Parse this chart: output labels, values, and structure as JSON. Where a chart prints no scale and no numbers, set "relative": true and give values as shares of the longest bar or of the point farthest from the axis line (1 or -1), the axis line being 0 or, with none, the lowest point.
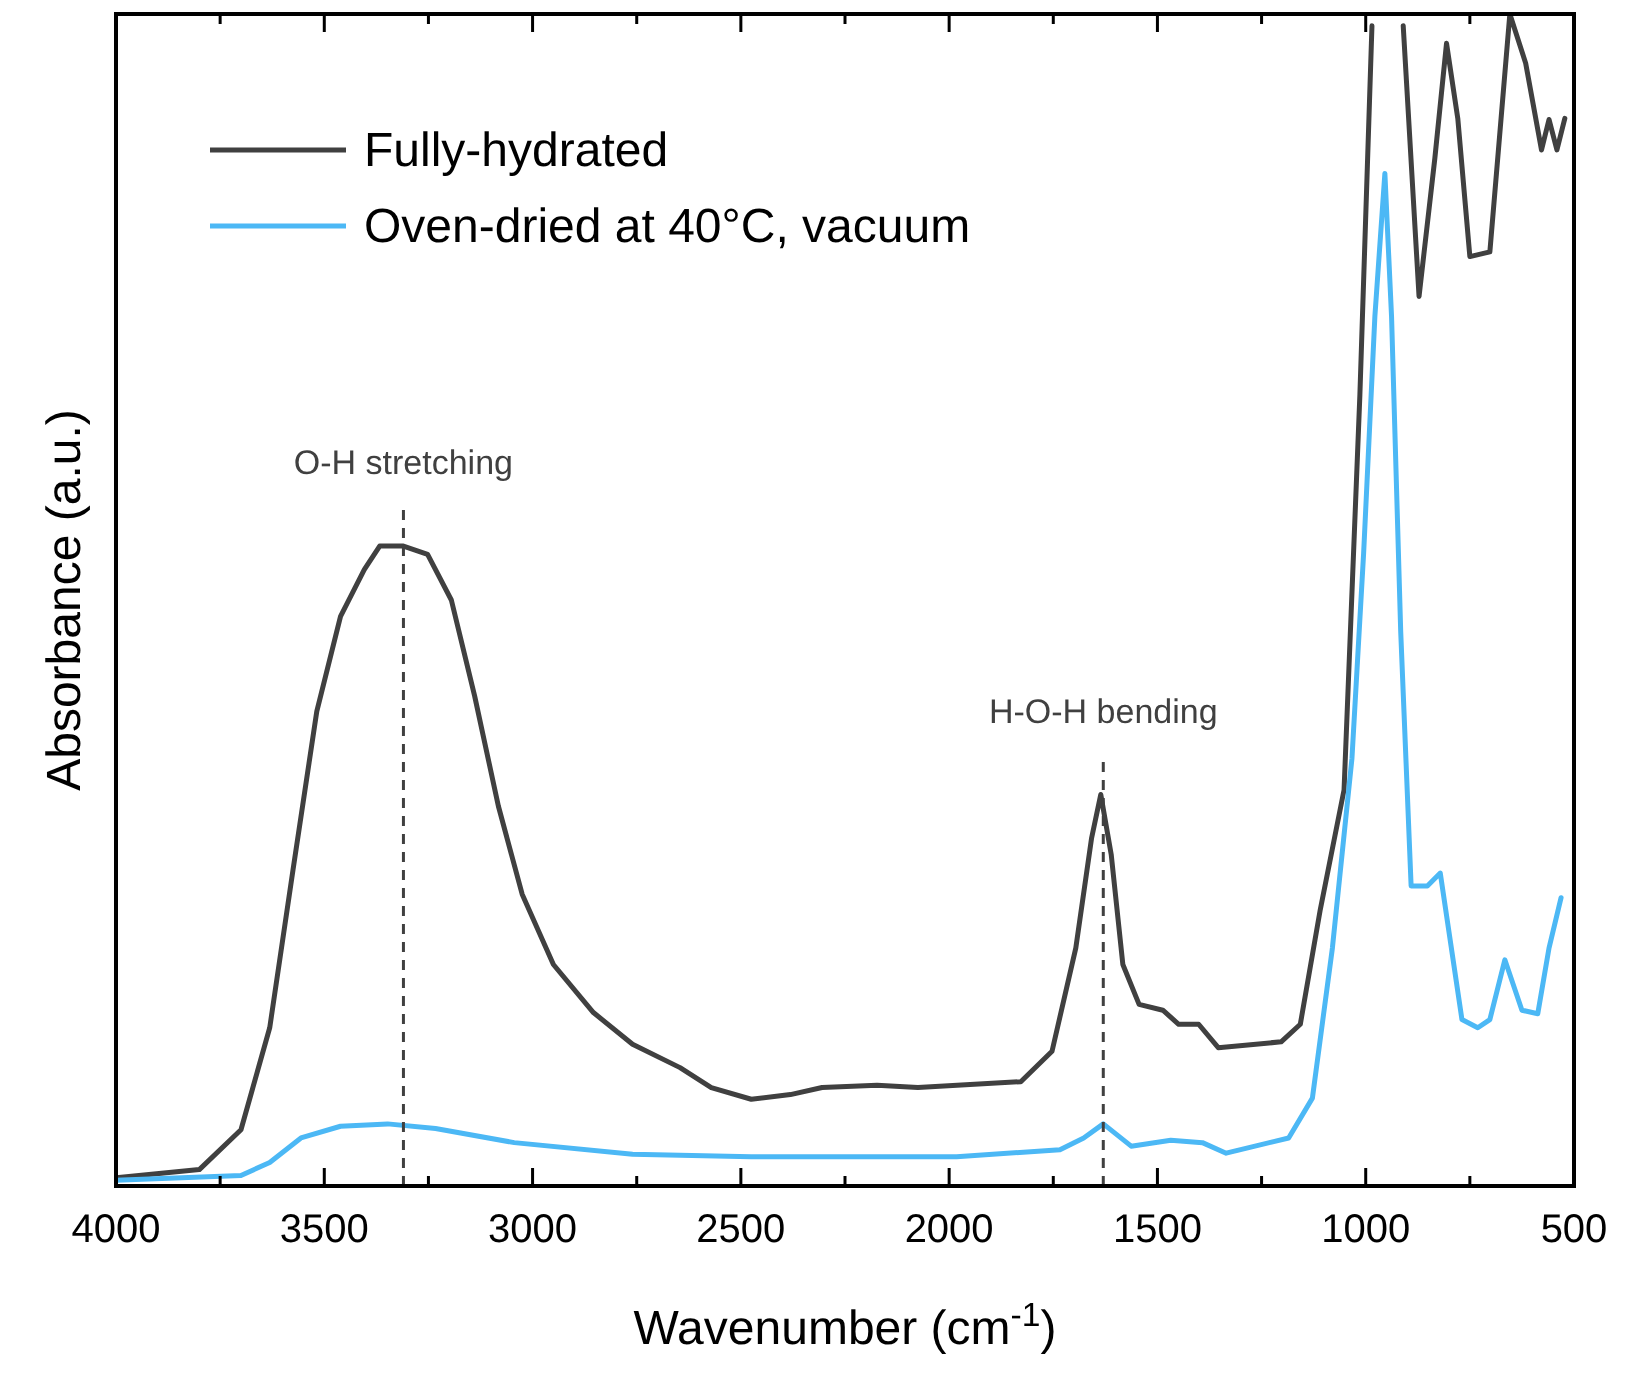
{
  "chart_data": {
    "type": "line",
    "relative": true,
    "xlabel": "Wavenumber (cm$^{-1}$)",
    "ylabel": "Absorbance (a.u.)",
    "legend": "top left",
    "xlim": [
      4000,
      500
    ],
    "xticks": [
      4000,
      {
        "value": 3750,
        "label": null
      },
      3500,
      {
        "value": 3250,
        "label": null
      },
      3000,
      {
        "value": 2750,
        "label": null
      },
      2500,
      {
        "value": 2250,
        "label": null
      },
      2000,
      {
        "value": 1750,
        "label": null
      },
      1500,
      {
        "value": 1250,
        "label": null
      },
      1000,
      {
        "value": 750,
        "label": null
      },
      500
    ],
    "ref_lines": [
      {
        "axis": "x",
        "value": 3310,
        "label": "O-H stretching",
        "line_style": "dashed",
        "color": "#404040"
      },
      {
        "axis": "x",
        "value": 1630,
        "label": "H-O-H bending",
        "line_style": "dashed",
        "color": "#404040"
      }
    ],
    "series": [
      {
        "name": "Fully-hydrated",
        "color": "#404040",
        "x": [
          4000,
          3800,
          3700,
          3631,
          3575,
          3518,
          3461,
          3404,
          3367,
          3310,
          3252,
          3195,
          3139,
          3082,
          3025,
          2950,
          2854,
          2760,
          2646,
          2571,
          2475,
          2381,
          2305,
          2173,
          2075,
          1828,
          1753,
          1696,
          1658,
          1636,
          1611,
          1583,
          1544,
          1487,
          1449,
          1401,
          1354,
          1203,
          1157,
          1109,
          1052,
          1014,
          985,
          960,
          940,
          910,
          872,
          834,
          806,
          779,
          750,
          702,
          654,
          616,
          578,
          560,
          541,
          522
        ],
        "values": [
          0.007,
          0.014,
          0.048,
          0.135,
          0.27,
          0.405,
          0.486,
          0.526,
          0.546,
          0.546,
          0.539,
          0.5,
          0.418,
          0.324,
          0.249,
          0.189,
          0.148,
          0.121,
          0.101,
          0.084,
          0.074,
          0.078,
          0.084,
          0.086,
          0.084,
          0.089,
          0.115,
          0.203,
          0.297,
          0.334,
          0.283,
          0.189,
          0.155,
          0.15,
          0.138,
          0.138,
          0.118,
          0.123,
          0.138,
          0.236,
          0.338,
          0.675,
          0.99,
          null,
          null,
          0.99,
          0.759,
          0.877,
          0.975,
          0.911,
          0.793,
          0.797,
          1,
          0.958,
          0.884,
          0.91,
          0.884,
          0.911
        ]
      },
      {
        "name": "Oven-dried at 40°C, vacuum",
        "color": "#4cb8f5",
        "x": [
          4000,
          3700,
          3631,
          3556,
          3461,
          3348,
          3233,
          3044,
          2760,
          2475,
          2190,
          1982,
          1734,
          1677,
          1630,
          1563,
          1468,
          1392,
          1335,
          1185,
          1128,
          1080,
          1033,
          1005,
          978,
          954,
          938,
          916,
          891,
          852,
          821,
          769,
          731,
          702,
          666,
          625,
          587,
          560,
          531
        ],
        "values": [
          0.005,
          0.009,
          0.02,
          0.041,
          0.051,
          0.053,
          0.049,
          0.037,
          0.027,
          0.025,
          0.025,
          0.025,
          0.031,
          0.041,
          0.053,
          0.034,
          0.039,
          0.037,
          0.028,
          0.041,
          0.075,
          0.203,
          0.365,
          0.54,
          0.742,
          0.864,
          0.742,
          0.473,
          0.256,
          0.256,
          0.267,
          0.142,
          0.135,
          0.142,
          0.193,
          0.15,
          0.147,
          0.203,
          0.246
        ]
      }
    ]
  }
}
